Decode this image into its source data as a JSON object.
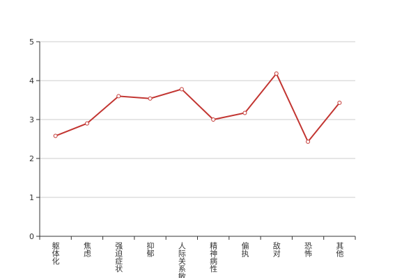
{
  "chart_data": {
    "type": "line",
    "categories": [
      "躯体化",
      "焦虑",
      "强迫症状",
      "抑郁",
      "人际关系敏感",
      "精神病性",
      "偏执",
      "敌对",
      "恐怖",
      "其他"
    ],
    "series": [
      {
        "color": "#c23531",
        "values": [
          2.58,
          2.9,
          3.6,
          3.54,
          3.78,
          3.0,
          3.17,
          4.18,
          2.43,
          3.43
        ]
      }
    ],
    "ylim": [
      0,
      5
    ],
    "yticks": [
      0,
      1,
      2,
      3,
      4,
      5
    ],
    "grid": true
  }
}
